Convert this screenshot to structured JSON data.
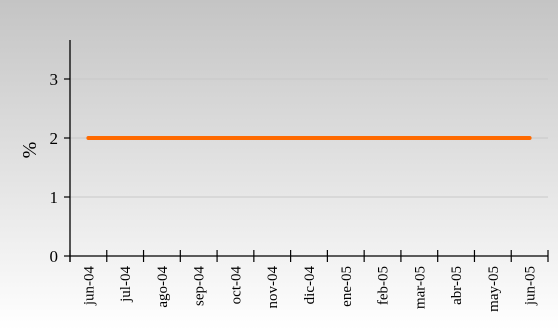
{
  "chart_data": {
    "type": "line",
    "title": "",
    "xlabel": "",
    "ylabel": "%",
    "x": [
      "jun-04",
      "jul-04",
      "ago-04",
      "sep-04",
      "oct-04",
      "nov-04",
      "dic-04",
      "ene-05",
      "feb-05",
      "mar-05",
      "abr-05",
      "may-05",
      "jun-05"
    ],
    "yticks": [
      "0",
      "1",
      "2",
      "3"
    ],
    "ylim": [
      0,
      3.5
    ],
    "series": [
      {
        "values": [
          2,
          2,
          2,
          2,
          2,
          2,
          2,
          2,
          2,
          2,
          2,
          2,
          2
        ]
      }
    ],
    "grid": true,
    "legend": "none",
    "colors": {
      "line": "#ff6a00",
      "grid": "#c8c8c8",
      "axis": "#000000",
      "background_top": "#c4c4c4",
      "background_bottom": "#ffffff"
    }
  }
}
